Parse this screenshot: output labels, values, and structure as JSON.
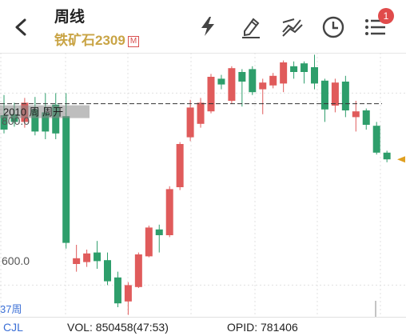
{
  "header": {
    "title": "周线",
    "subtitle": "铁矿石2309",
    "market_badge": "M",
    "notification_count": "1",
    "icons": [
      "back-icon",
      "lightning-icon",
      "pen-draw-icon",
      "trend-lines-icon",
      "clock-icon",
      "menu-list-icon"
    ]
  },
  "chart": {
    "upper_price_label": "800.0",
    "lower_price_label": "600.0",
    "overlay_text": "2010 周 周开",
    "period_label": "37周",
    "colors": {
      "up": "#e05b5b",
      "down": "#2e9e6b",
      "grid": "#e0e0e0",
      "ref_line": "#333333",
      "marker": "#e0a020"
    }
  },
  "chart_data": {
    "type": "candlestick",
    "ylim": [
      567,
      842
    ],
    "reference_line": 789,
    "candles": [
      {
        "o": 777,
        "c": 762,
        "h": 798,
        "l": 758
      },
      {
        "o": 778,
        "c": 770,
        "h": 790,
        "l": 765
      },
      {
        "o": 770,
        "c": 790,
        "h": 795,
        "l": 764
      },
      {
        "o": 783,
        "c": 760,
        "h": 796,
        "l": 756
      },
      {
        "o": 780,
        "c": 760,
        "h": 800,
        "l": 752
      },
      {
        "o": 788,
        "c": 758,
        "h": 800,
        "l": 752
      },
      {
        "o": 776,
        "c": 644,
        "h": 800,
        "l": 638
      },
      {
        "o": 622,
        "c": 628,
        "h": 642,
        "l": 614
      },
      {
        "o": 624,
        "c": 633,
        "h": 637,
        "l": 619
      },
      {
        "o": 634,
        "c": 625,
        "h": 646,
        "l": 617
      },
      {
        "o": 626,
        "c": 604,
        "h": 634,
        "l": 600
      },
      {
        "o": 608,
        "c": 581,
        "h": 614,
        "l": 577
      },
      {
        "o": 583,
        "c": 600,
        "h": 603,
        "l": 569
      },
      {
        "o": 598,
        "c": 632,
        "h": 634,
        "l": 597
      },
      {
        "o": 630,
        "c": 660,
        "h": 662,
        "l": 629
      },
      {
        "o": 658,
        "c": 652,
        "h": 663,
        "l": 634
      },
      {
        "o": 652,
        "c": 700,
        "h": 703,
        "l": 650
      },
      {
        "o": 702,
        "c": 747,
        "h": 749,
        "l": 699
      },
      {
        "o": 754,
        "c": 785,
        "h": 793,
        "l": 750
      },
      {
        "o": 768,
        "c": 790,
        "h": 795,
        "l": 764
      },
      {
        "o": 781,
        "c": 817,
        "h": 820,
        "l": 779
      },
      {
        "o": 815,
        "c": 809,
        "h": 819,
        "l": 804
      },
      {
        "o": 792,
        "c": 826,
        "h": 828,
        "l": 789
      },
      {
        "o": 822,
        "c": 812,
        "h": 825,
        "l": 786
      },
      {
        "o": 825,
        "c": 801,
        "h": 828,
        "l": 798
      },
      {
        "o": 804,
        "c": 811,
        "h": 815,
        "l": 778
      },
      {
        "o": 808,
        "c": 818,
        "h": 821,
        "l": 805
      },
      {
        "o": 810,
        "c": 832,
        "h": 834,
        "l": 801
      },
      {
        "o": 828,
        "c": 822,
        "h": 833,
        "l": 815
      },
      {
        "o": 831,
        "c": 822,
        "h": 833,
        "l": 810
      },
      {
        "o": 827,
        "c": 810,
        "h": 840,
        "l": 804
      },
      {
        "o": 813,
        "c": 783,
        "h": 815,
        "l": 770
      },
      {
        "o": 787,
        "c": 811,
        "h": 815,
        "l": 780
      },
      {
        "o": 812,
        "c": 782,
        "h": 818,
        "l": 775
      },
      {
        "o": 775,
        "c": 781,
        "h": 792,
        "l": 760
      },
      {
        "o": 782,
        "c": 767,
        "h": 784,
        "l": 762
      },
      {
        "o": 766,
        "c": 738,
        "h": 770,
        "l": 736
      },
      {
        "o": 738,
        "c": 731,
        "h": 740,
        "l": 728
      }
    ]
  },
  "footer": {
    "indicator": "CJL",
    "vol": "VOL: 850458(47:53)",
    "opid": "OPID: 781406"
  }
}
